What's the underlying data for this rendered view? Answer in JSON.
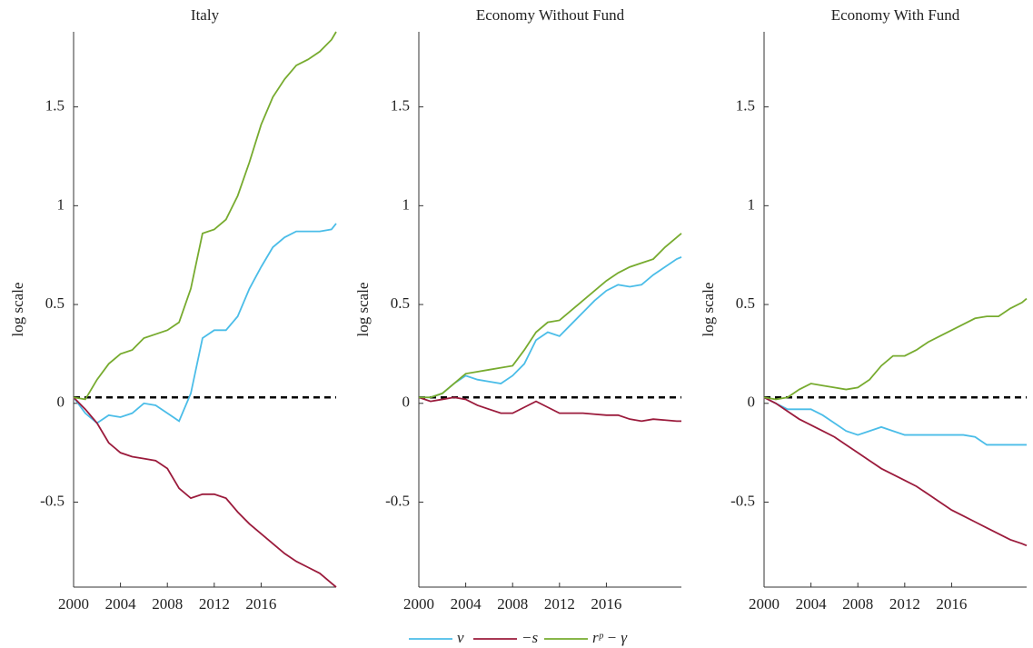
{
  "chart_data": [
    {
      "type": "line",
      "title": "Italy",
      "ylabel": "log scale",
      "x": [
        2000,
        2001,
        2002,
        2003,
        2004,
        2005,
        2006,
        2007,
        2008,
        2009,
        2010,
        2011,
        2012,
        2013,
        2014,
        2015,
        2016,
        2017,
        2018,
        2019,
        2020,
        2021,
        2022,
        2022.4
      ],
      "xlim": [
        2000,
        2022.4
      ],
      "xticks": [
        2000,
        2004,
        2008,
        2012,
        2016
      ],
      "ylim": [
        -0.93,
        1.88
      ],
      "yticks": [
        -0.5,
        0,
        0.5,
        1,
        1.5
      ],
      "hline": 0.03,
      "series": [
        {
          "name": "v",
          "color": "#4bbde8",
          "values": [
            0.03,
            -0.05,
            -0.1,
            -0.06,
            -0.07,
            -0.05,
            0.0,
            -0.01,
            -0.05,
            -0.09,
            0.05,
            0.33,
            0.37,
            0.37,
            0.44,
            0.58,
            0.69,
            0.79,
            0.84,
            0.87,
            0.87,
            0.87,
            0.88,
            0.91
          ]
        },
        {
          "name": "−s",
          "color": "#9b1b3c",
          "values": [
            0.03,
            -0.03,
            -0.1,
            -0.2,
            -0.25,
            -0.27,
            -0.28,
            -0.29,
            -0.33,
            -0.43,
            -0.48,
            -0.46,
            -0.46,
            -0.48,
            -0.55,
            -0.61,
            -0.66,
            -0.71,
            -0.76,
            -0.8,
            -0.83,
            -0.86,
            -0.91,
            -0.93
          ]
        },
        {
          "name": "rᵖ − γ",
          "color": "#77ab2f",
          "values": [
            0.03,
            0.02,
            0.12,
            0.2,
            0.25,
            0.27,
            0.33,
            0.35,
            0.37,
            0.41,
            0.58,
            0.86,
            0.88,
            0.93,
            1.05,
            1.22,
            1.41,
            1.55,
            1.64,
            1.71,
            1.74,
            1.78,
            1.84,
            1.88
          ]
        }
      ]
    },
    {
      "type": "line",
      "title": "Economy Without Fund",
      "ylabel": "log scale",
      "x": [
        2000,
        2001,
        2002,
        2003,
        2004,
        2005,
        2006,
        2007,
        2008,
        2009,
        2010,
        2011,
        2012,
        2013,
        2014,
        2015,
        2016,
        2017,
        2018,
        2019,
        2020,
        2021,
        2022,
        2022.4
      ],
      "xlim": [
        2000,
        2022.4
      ],
      "xticks": [
        2000,
        2004,
        2008,
        2012,
        2016
      ],
      "ylim": [
        -0.93,
        1.88
      ],
      "yticks": [
        -0.5,
        0,
        0.5,
        1,
        1.5
      ],
      "hline": 0.03,
      "series": [
        {
          "color": "#4bbde8",
          "values": [
            0.03,
            0.03,
            0.05,
            0.1,
            0.14,
            0.12,
            0.11,
            0.1,
            0.14,
            0.2,
            0.32,
            0.36,
            0.34,
            0.4,
            0.46,
            0.52,
            0.57,
            0.6,
            0.59,
            0.6,
            0.65,
            0.69,
            0.73,
            0.74
          ]
        },
        {
          "color": "#9b1b3c",
          "values": [
            0.03,
            0.01,
            0.02,
            0.03,
            0.02,
            -0.01,
            -0.03,
            -0.05,
            -0.05,
            -0.02,
            0.01,
            -0.02,
            -0.05,
            -0.05,
            -0.05,
            -0.055,
            -0.06,
            -0.06,
            -0.08,
            -0.09,
            -0.08,
            -0.085,
            -0.09,
            -0.09
          ]
        },
        {
          "color": "#77ab2f",
          "values": [
            0.03,
            0.03,
            0.05,
            0.1,
            0.15,
            0.16,
            0.17,
            0.18,
            0.19,
            0.27,
            0.36,
            0.41,
            0.42,
            0.47,
            0.52,
            0.57,
            0.62,
            0.66,
            0.69,
            0.71,
            0.73,
            0.79,
            0.84,
            0.86
          ]
        }
      ]
    },
    {
      "type": "line",
      "title": "Economy With Fund",
      "ylabel": "log scale",
      "x": [
        2000,
        2001,
        2002,
        2003,
        2004,
        2005,
        2006,
        2007,
        2008,
        2009,
        2010,
        2011,
        2012,
        2013,
        2014,
        2015,
        2016,
        2017,
        2018,
        2019,
        2020,
        2021,
        2022,
        2022.4
      ],
      "xlim": [
        2000,
        2022.4
      ],
      "xticks": [
        2000,
        2004,
        2008,
        2012,
        2016
      ],
      "ylim": [
        -0.93,
        1.88
      ],
      "yticks": [
        -0.5,
        0,
        0.5,
        1,
        1.5
      ],
      "hline": 0.03,
      "series": [
        {
          "color": "#4bbde8",
          "values": [
            0.03,
            0.0,
            -0.03,
            -0.03,
            -0.03,
            -0.06,
            -0.1,
            -0.14,
            -0.16,
            -0.14,
            -0.12,
            -0.14,
            -0.16,
            -0.16,
            -0.16,
            -0.16,
            -0.16,
            -0.16,
            -0.17,
            -0.21,
            -0.21,
            -0.21,
            -0.21,
            -0.21
          ]
        },
        {
          "color": "#9b1b3c",
          "values": [
            0.03,
            0.0,
            -0.04,
            -0.08,
            -0.11,
            -0.14,
            -0.17,
            -0.21,
            -0.25,
            -0.29,
            -0.33,
            -0.36,
            -0.39,
            -0.42,
            -0.46,
            -0.5,
            -0.54,
            -0.57,
            -0.6,
            -0.63,
            -0.66,
            -0.69,
            -0.71,
            -0.72
          ]
        },
        {
          "color": "#77ab2f",
          "values": [
            0.03,
            0.02,
            0.03,
            0.07,
            0.1,
            0.09,
            0.08,
            0.07,
            0.08,
            0.12,
            0.19,
            0.24,
            0.24,
            0.27,
            0.31,
            0.34,
            0.37,
            0.4,
            0.43,
            0.44,
            0.44,
            0.48,
            0.51,
            0.53
          ]
        }
      ]
    }
  ]
}
